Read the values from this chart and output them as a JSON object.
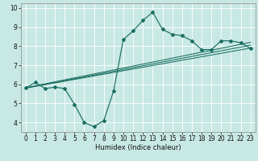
{
  "xlabel": "Humidex (Indice chaleur)",
  "background_color": "#c8e8e4",
  "grid_color": "#ffffff",
  "line_color": "#1a6e62",
  "xlim": [
    -0.5,
    23.5
  ],
  "ylim": [
    3.5,
    10.25
  ],
  "xticks": [
    0,
    1,
    2,
    3,
    4,
    5,
    6,
    7,
    8,
    9,
    10,
    11,
    12,
    13,
    14,
    15,
    16,
    17,
    18,
    19,
    20,
    21,
    22,
    23
  ],
  "yticks": [
    4,
    5,
    6,
    7,
    8,
    9,
    10
  ],
  "main_line": {
    "x": [
      0,
      1,
      2,
      3,
      4,
      5,
      6,
      7,
      8,
      9,
      10,
      11,
      12,
      13,
      14,
      15,
      16,
      17,
      18,
      19,
      20,
      21,
      22,
      23
    ],
    "y": [
      5.8,
      6.1,
      5.78,
      5.85,
      5.78,
      4.95,
      4.0,
      3.78,
      4.1,
      5.65,
      8.35,
      8.8,
      9.35,
      9.78,
      8.88,
      8.62,
      8.55,
      8.28,
      7.82,
      7.82,
      8.28,
      8.28,
      8.18,
      7.88
    ]
  },
  "trend_lines": [
    {
      "x": [
        0,
        23
      ],
      "y": [
        5.8,
        7.9
      ]
    },
    {
      "x": [
        0,
        23
      ],
      "y": [
        5.8,
        8.05
      ]
    },
    {
      "x": [
        0,
        23
      ],
      "y": [
        5.82,
        8.2
      ]
    }
  ]
}
